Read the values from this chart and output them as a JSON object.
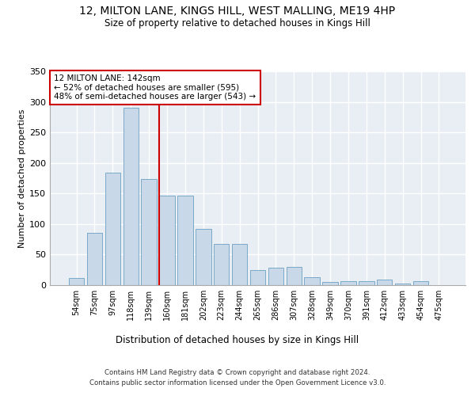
{
  "title": "12, MILTON LANE, KINGS HILL, WEST MALLING, ME19 4HP",
  "subtitle": "Size of property relative to detached houses in Kings Hill",
  "xlabel": "Distribution of detached houses by size in Kings Hill",
  "ylabel": "Number of detached properties",
  "categories": [
    "54sqm",
    "75sqm",
    "97sqm",
    "118sqm",
    "139sqm",
    "160sqm",
    "181sqm",
    "202sqm",
    "223sqm",
    "244sqm",
    "265sqm",
    "286sqm",
    "307sqm",
    "328sqm",
    "349sqm",
    "370sqm",
    "391sqm",
    "412sqm",
    "433sqm",
    "454sqm",
    "475sqm"
  ],
  "values": [
    12,
    86,
    184,
    290,
    174,
    147,
    147,
    92,
    68,
    68,
    25,
    28,
    30,
    13,
    5,
    6,
    7,
    9,
    3,
    6,
    0
  ],
  "bar_color": "#c8d8e8",
  "bar_edgecolor": "#7aaac8",
  "background_color": "#e8eef4",
  "grid_color": "#ffffff",
  "red_line_index": 4.57,
  "annotation_text": "12 MILTON LANE: 142sqm\n← 52% of detached houses are smaller (595)\n48% of semi-detached houses are larger (543) →",
  "annotation_box_color": "#ffffff",
  "annotation_box_edgecolor": "#cc0000",
  "annotation_text_color": "#000000",
  "red_line_color": "#cc0000",
  "footer_line1": "Contains HM Land Registry data © Crown copyright and database right 2024.",
  "footer_line2": "Contains public sector information licensed under the Open Government Licence v3.0.",
  "ylim": [
    0,
    350
  ],
  "yticks": [
    0,
    50,
    100,
    150,
    200,
    250,
    300,
    350
  ]
}
